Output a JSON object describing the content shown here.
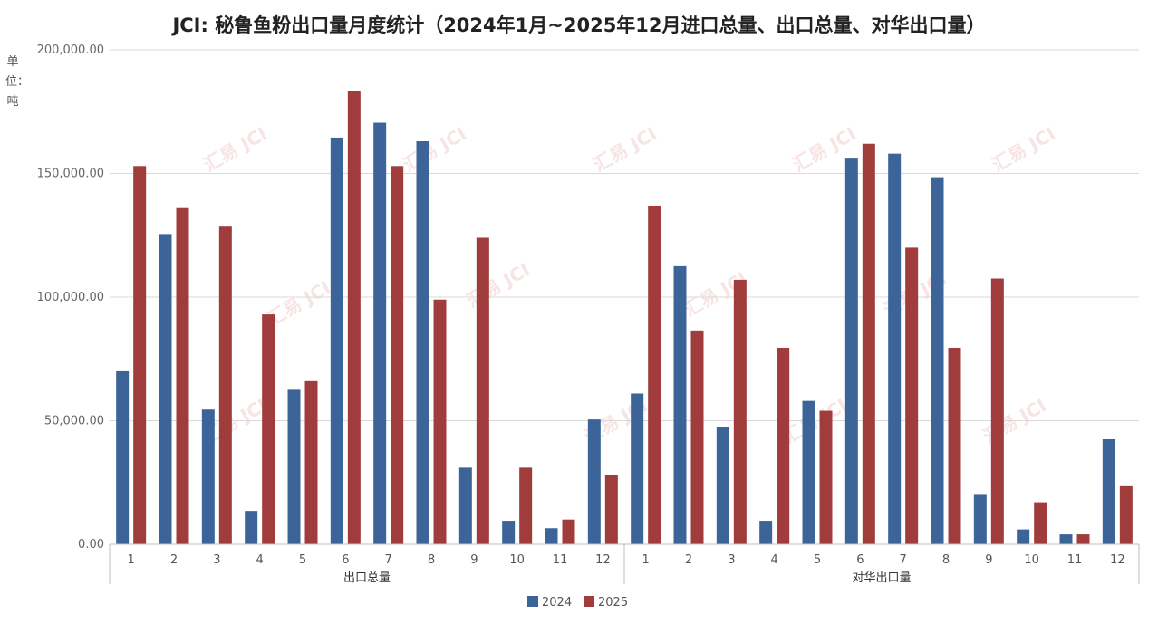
{
  "title": "JCI: 秘鲁鱼粉出口量月度统计（2024年1月~2025年12月进口总量、出口总量、对华出口量）",
  "unit_label": "单位：吨",
  "watermark": "汇易 JCI",
  "colors": {
    "series_2024": "#3d6499",
    "series_2025": "#a03c3c",
    "grid": "#d9d9d9",
    "axis": "#bfbfbf"
  },
  "chart_data": {
    "type": "bar",
    "title": "JCI: 秘鲁鱼粉出口量月度统计（2024年1月~2025年12月进口总量、出口总量、对华出口量）",
    "ylabel": "单位：吨",
    "ylim": [
      0,
      200000
    ],
    "yticks": [
      0,
      50000,
      100000,
      150000,
      200000
    ],
    "ytick_labels": [
      "0.00",
      "50,000.00",
      "100,000.00",
      "150,000.00",
      "200,000.00"
    ],
    "grid": true,
    "legend_position": "bottom-center",
    "groups": [
      {
        "name": "出口总量",
        "categories": [
          "1",
          "2",
          "3",
          "4",
          "5",
          "6",
          "7",
          "8",
          "9",
          "10",
          "11",
          "12"
        ],
        "series": [
          {
            "name": "2024",
            "values": [
              70000,
              125500,
              54500,
              13500,
              62500,
              164500,
              170500,
              163000,
              31000,
              9500,
              6500,
              50500
            ]
          },
          {
            "name": "2025",
            "values": [
              153000,
              136000,
              128500,
              93000,
              66000,
              183500,
              153000,
              99000,
              124000,
              31000,
              10000,
              28000
            ]
          }
        ]
      },
      {
        "name": "对华出口量",
        "categories": [
          "1",
          "2",
          "3",
          "4",
          "5",
          "6",
          "7",
          "8",
          "9",
          "10",
          "11",
          "12"
        ],
        "series": [
          {
            "name": "2024",
            "values": [
              61000,
              112500,
              47500,
              9500,
              58000,
              156000,
              158000,
              148500,
              20000,
              6000,
              4000,
              42500
            ]
          },
          {
            "name": "2025",
            "values": [
              137000,
              86500,
              107000,
              79500,
              54000,
              162000,
              120000,
              79500,
              107500,
              17000,
              4000,
              23500
            ]
          }
        ]
      }
    ]
  }
}
